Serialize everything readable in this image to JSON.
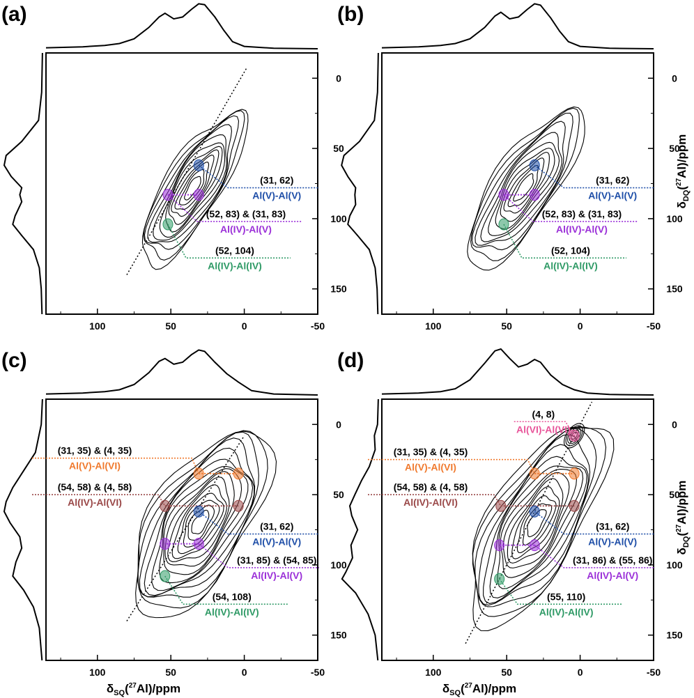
{
  "colors": {
    "AlV_AlV": "#1f4fa8",
    "AlIV_AlV": "#9b30d8",
    "AlIV_AlIV": "#2f9a66",
    "AlV_AlVI": "#f07a2e",
    "AlIV_AlVI": "#9a4848",
    "AlVI_AlVI": "#e8559a",
    "contour": "#000000"
  },
  "axis_titles": {
    "x_main": "δ",
    "x_sub": "SQ",
    "x_sup": "27",
    "x_rest": "Al)/ppm",
    "y_main": "δ",
    "y_sub": "DQ",
    "y_sup": "27",
    "y_rest": "Al)/ppm"
  },
  "chart_data": [
    {
      "type": "heatmap",
      "panel": "(a)",
      "x_ticks": [
        "100",
        "50",
        "0",
        "-50"
      ],
      "y_ticks": [
        "0",
        "50",
        "100",
        "150"
      ],
      "xlim": [
        135,
        -50
      ],
      "ylim": [
        -18,
        168
      ],
      "diagonal": [
        [
          80,
          140
        ],
        [
          -2,
          -8
        ]
      ],
      "contours": {
        "cx": 35,
        "cy": 78,
        "rx": 60,
        "ry": 20,
        "angle": -58,
        "levels": 12
      },
      "x_axis_title": false,
      "y_axis_title": false,
      "correlations": [
        {
          "coords": "(31, 62)",
          "pair": "Al(V)-Al(V)",
          "color_key": "AlV_AlV",
          "points": [
            [
              31,
              62
            ]
          ]
        },
        {
          "coords": "(52, 83) & (31, 83)",
          "pair": "Al(IV)-Al(V)",
          "color_key": "AlIV_AlV",
          "points": [
            [
              52,
              83
            ],
            [
              31,
              83
            ]
          ]
        },
        {
          "coords": "(52, 104)",
          "pair": "Al(IV)-Al(IV)",
          "color_key": "AlIV_AlIV",
          "points": [
            [
              52,
              104
            ]
          ]
        }
      ],
      "projection_x": [
        [
          135,
          0.05
        ],
        [
          110,
          0.07
        ],
        [
          95,
          0.1
        ],
        [
          85,
          0.14
        ],
        [
          75,
          0.24
        ],
        [
          65,
          0.48
        ],
        [
          58,
          0.7
        ],
        [
          54,
          0.78
        ],
        [
          48,
          0.66
        ],
        [
          42,
          0.7
        ],
        [
          36,
          0.86
        ],
        [
          31,
          0.98
        ],
        [
          27,
          0.96
        ],
        [
          20,
          0.7
        ],
        [
          14,
          0.42
        ],
        [
          8,
          0.18
        ],
        [
          0,
          0.08
        ],
        [
          -20,
          0.04
        ],
        [
          -50,
          0.03
        ]
      ],
      "projection_y": [
        [
          -18,
          0.02
        ],
        [
          10,
          0.04
        ],
        [
          30,
          0.12
        ],
        [
          45,
          0.55
        ],
        [
          55,
          0.95
        ],
        [
          62,
          1.0
        ],
        [
          70,
          0.82
        ],
        [
          78,
          0.55
        ],
        [
          83,
          0.6
        ],
        [
          88,
          0.55
        ],
        [
          98,
          0.72
        ],
        [
          104,
          0.78
        ],
        [
          112,
          0.55
        ],
        [
          122,
          0.25
        ],
        [
          135,
          0.1
        ],
        [
          150,
          0.05
        ],
        [
          168,
          0.03
        ]
      ]
    },
    {
      "type": "heatmap",
      "panel": "(b)",
      "x_ticks": [
        "100",
        "50",
        "0",
        "-50"
      ],
      "y_ticks": [
        "0",
        "50",
        "100",
        "150"
      ],
      "xlim": [
        135,
        -50
      ],
      "ylim": [
        -18,
        168
      ],
      "diagonal": null,
      "contours": {
        "cx": 38,
        "cy": 78,
        "rx": 64,
        "ry": 22,
        "angle": -56,
        "levels": 11
      },
      "x_axis_title": false,
      "y_axis_title": true,
      "correlations": [
        {
          "coords": "(31, 62)",
          "pair": "Al(V)-Al(V)",
          "color_key": "AlV_AlV",
          "points": [
            [
              31,
              62
            ]
          ]
        },
        {
          "coords": "(52, 83) & (31, 83)",
          "pair": "Al(IV)-Al(V)",
          "color_key": "AlIV_AlV",
          "points": [
            [
              52,
              83
            ],
            [
              31,
              83
            ]
          ]
        },
        {
          "coords": "(52, 104)",
          "pair": "Al(IV)-Al(IV)",
          "color_key": "AlIV_AlIV",
          "points": [
            [
              52,
              104
            ]
          ]
        }
      ],
      "projection_x": [
        [
          135,
          0.05
        ],
        [
          110,
          0.07
        ],
        [
          95,
          0.1
        ],
        [
          85,
          0.14
        ],
        [
          75,
          0.24
        ],
        [
          65,
          0.48
        ],
        [
          58,
          0.72
        ],
        [
          54,
          0.8
        ],
        [
          48,
          0.66
        ],
        [
          42,
          0.7
        ],
        [
          36,
          0.86
        ],
        [
          31,
          0.98
        ],
        [
          27,
          0.95
        ],
        [
          20,
          0.68
        ],
        [
          14,
          0.4
        ],
        [
          8,
          0.18
        ],
        [
          0,
          0.08
        ],
        [
          -20,
          0.04
        ],
        [
          -50,
          0.03
        ]
      ],
      "projection_y": [
        [
          -18,
          0.02
        ],
        [
          10,
          0.04
        ],
        [
          30,
          0.12
        ],
        [
          45,
          0.5
        ],
        [
          55,
          0.9
        ],
        [
          62,
          0.96
        ],
        [
          70,
          0.8
        ],
        [
          78,
          0.6
        ],
        [
          83,
          0.62
        ],
        [
          90,
          0.6
        ],
        [
          98,
          0.75
        ],
        [
          104,
          0.8
        ],
        [
          112,
          0.55
        ],
        [
          122,
          0.25
        ],
        [
          135,
          0.1
        ],
        [
          150,
          0.05
        ],
        [
          168,
          0.03
        ]
      ]
    },
    {
      "type": "heatmap",
      "panel": "(c)",
      "x_ticks": [
        "100",
        "50",
        "0",
        "-50"
      ],
      "y_ticks": [
        "0",
        "50",
        "100",
        "150"
      ],
      "xlim": [
        135,
        -50
      ],
      "ylim": [
        -18,
        168
      ],
      "diagonal": [
        [
          80,
          140
        ],
        [
          0,
          8
        ]
      ],
      "contours": {
        "cx": 30,
        "cy": 70,
        "rx": 72,
        "ry": 34,
        "angle": -58,
        "levels": 15
      },
      "x_axis_title": true,
      "y_axis_title": false,
      "correlations": [
        {
          "coords": "(31, 35) & (4, 35)",
          "pair": "Al(V)-Al(VI)",
          "color_key": "AlV_AlVI",
          "points": [
            [
              31,
              35
            ],
            [
              4,
              35
            ]
          ]
        },
        {
          "coords": "(54, 58) & (4, 58)",
          "pair": "Al(IV)-Al(VI)",
          "color_key": "AlIV_AlVI",
          "points": [
            [
              54,
              58
            ],
            [
              4,
              58
            ]
          ]
        },
        {
          "coords": "(31, 62)",
          "pair": "Al(V)-Al(V)",
          "color_key": "AlV_AlV",
          "points": [
            [
              31,
              62
            ]
          ]
        },
        {
          "coords": "(31, 85) & (54, 85)",
          "pair": "Al(IV)-Al(V)",
          "color_key": "AlIV_AlV",
          "points": [
            [
              31,
              85
            ],
            [
              54,
              85
            ]
          ]
        },
        {
          "coords": "(54, 108)",
          "pair": "Al(IV)-Al(IV)",
          "color_key": "AlIV_AlIV",
          "points": [
            [
              54,
              108
            ]
          ]
        }
      ],
      "projection_x": [
        [
          135,
          0.05
        ],
        [
          110,
          0.07
        ],
        [
          95,
          0.1
        ],
        [
          85,
          0.14
        ],
        [
          75,
          0.25
        ],
        [
          65,
          0.5
        ],
        [
          58,
          0.74
        ],
        [
          54,
          0.8
        ],
        [
          48,
          0.68
        ],
        [
          42,
          0.72
        ],
        [
          36,
          0.88
        ],
        [
          31,
          0.98
        ],
        [
          27,
          0.95
        ],
        [
          20,
          0.72
        ],
        [
          12,
          0.48
        ],
        [
          4,
          0.3
        ],
        [
          -5,
          0.12
        ],
        [
          -20,
          0.05
        ],
        [
          -50,
          0.03
        ]
      ],
      "projection_y": [
        [
          -18,
          0.02
        ],
        [
          0,
          0.05
        ],
        [
          20,
          0.2
        ],
        [
          35,
          0.55
        ],
        [
          45,
          0.78
        ],
        [
          55,
          0.95
        ],
        [
          62,
          1.0
        ],
        [
          70,
          0.85
        ],
        [
          80,
          0.6
        ],
        [
          88,
          0.55
        ],
        [
          98,
          0.7
        ],
        [
          108,
          0.78
        ],
        [
          118,
          0.5
        ],
        [
          130,
          0.25
        ],
        [
          145,
          0.1
        ],
        [
          168,
          0.03
        ]
      ]
    },
    {
      "type": "heatmap",
      "panel": "(d)",
      "x_ticks": [
        "100",
        "50",
        "0",
        "-50"
      ],
      "y_ticks": [
        "0",
        "50",
        "100",
        "150"
      ],
      "xlim": [
        135,
        -50
      ],
      "ylim": [
        -18,
        168
      ],
      "diagonal": [
        [
          78,
          156
        ],
        [
          -8,
          -16
        ]
      ],
      "contours": {
        "cx": 30,
        "cy": 70,
        "rx": 78,
        "ry": 32,
        "angle": -60,
        "levels": 14
      },
      "x_axis_title": true,
      "y_axis_title": true,
      "correlations": [
        {
          "coords": "(4, 8)",
          "pair": "Al(VI)-Al(VI)",
          "color_key": "AlVI_AlVI",
          "points": [
            [
              4,
              8
            ]
          ]
        },
        {
          "coords": "(31, 35) & (4, 35)",
          "pair": "Al(V)-Al(VI)",
          "color_key": "AlV_AlVI",
          "points": [
            [
              31,
              35
            ],
            [
              4,
              35
            ]
          ]
        },
        {
          "coords": "(54, 58) & (4, 58)",
          "pair": "Al(IV)-Al(VI)",
          "color_key": "AlIV_AlVI",
          "points": [
            [
              54,
              58
            ],
            [
              4,
              58
            ]
          ]
        },
        {
          "coords": "(31, 62)",
          "pair": "Al(V)-Al(V)",
          "color_key": "AlV_AlV",
          "points": [
            [
              31,
              62
            ]
          ]
        },
        {
          "coords": "(31, 86) & (55, 86)",
          "pair": "Al(IV)-Al(V)",
          "color_key": "AlIV_AlV",
          "points": [
            [
              31,
              86
            ],
            [
              55,
              86
            ]
          ]
        },
        {
          "coords": "(55, 110)",
          "pair": "Al(IV)-Al(IV)",
          "color_key": "AlIV_AlIV",
          "points": [
            [
              55,
              110
            ]
          ]
        }
      ],
      "projection_x": [
        [
          135,
          0.05
        ],
        [
          110,
          0.07
        ],
        [
          95,
          0.1
        ],
        [
          85,
          0.16
        ],
        [
          75,
          0.35
        ],
        [
          65,
          0.7
        ],
        [
          58,
          0.96
        ],
        [
          54,
          1.0
        ],
        [
          48,
          0.8
        ],
        [
          42,
          0.62
        ],
        [
          36,
          0.68
        ],
        [
          31,
          0.78
        ],
        [
          27,
          0.72
        ],
        [
          20,
          0.45
        ],
        [
          12,
          0.25
        ],
        [
          4,
          0.14
        ],
        [
          -5,
          0.07
        ],
        [
          -20,
          0.04
        ],
        [
          -50,
          0.03
        ]
      ],
      "projection_y": [
        [
          -18,
          0.02
        ],
        [
          0,
          0.04
        ],
        [
          8,
          0.12
        ],
        [
          18,
          0.1
        ],
        [
          30,
          0.25
        ],
        [
          40,
          0.45
        ],
        [
          50,
          0.62
        ],
        [
          58,
          0.75
        ],
        [
          65,
          0.7
        ],
        [
          75,
          0.55
        ],
        [
          86,
          0.72
        ],
        [
          95,
          0.68
        ],
        [
          105,
          0.85
        ],
        [
          110,
          0.95
        ],
        [
          120,
          0.6
        ],
        [
          135,
          0.28
        ],
        [
          150,
          0.1
        ],
        [
          168,
          0.03
        ]
      ]
    }
  ]
}
